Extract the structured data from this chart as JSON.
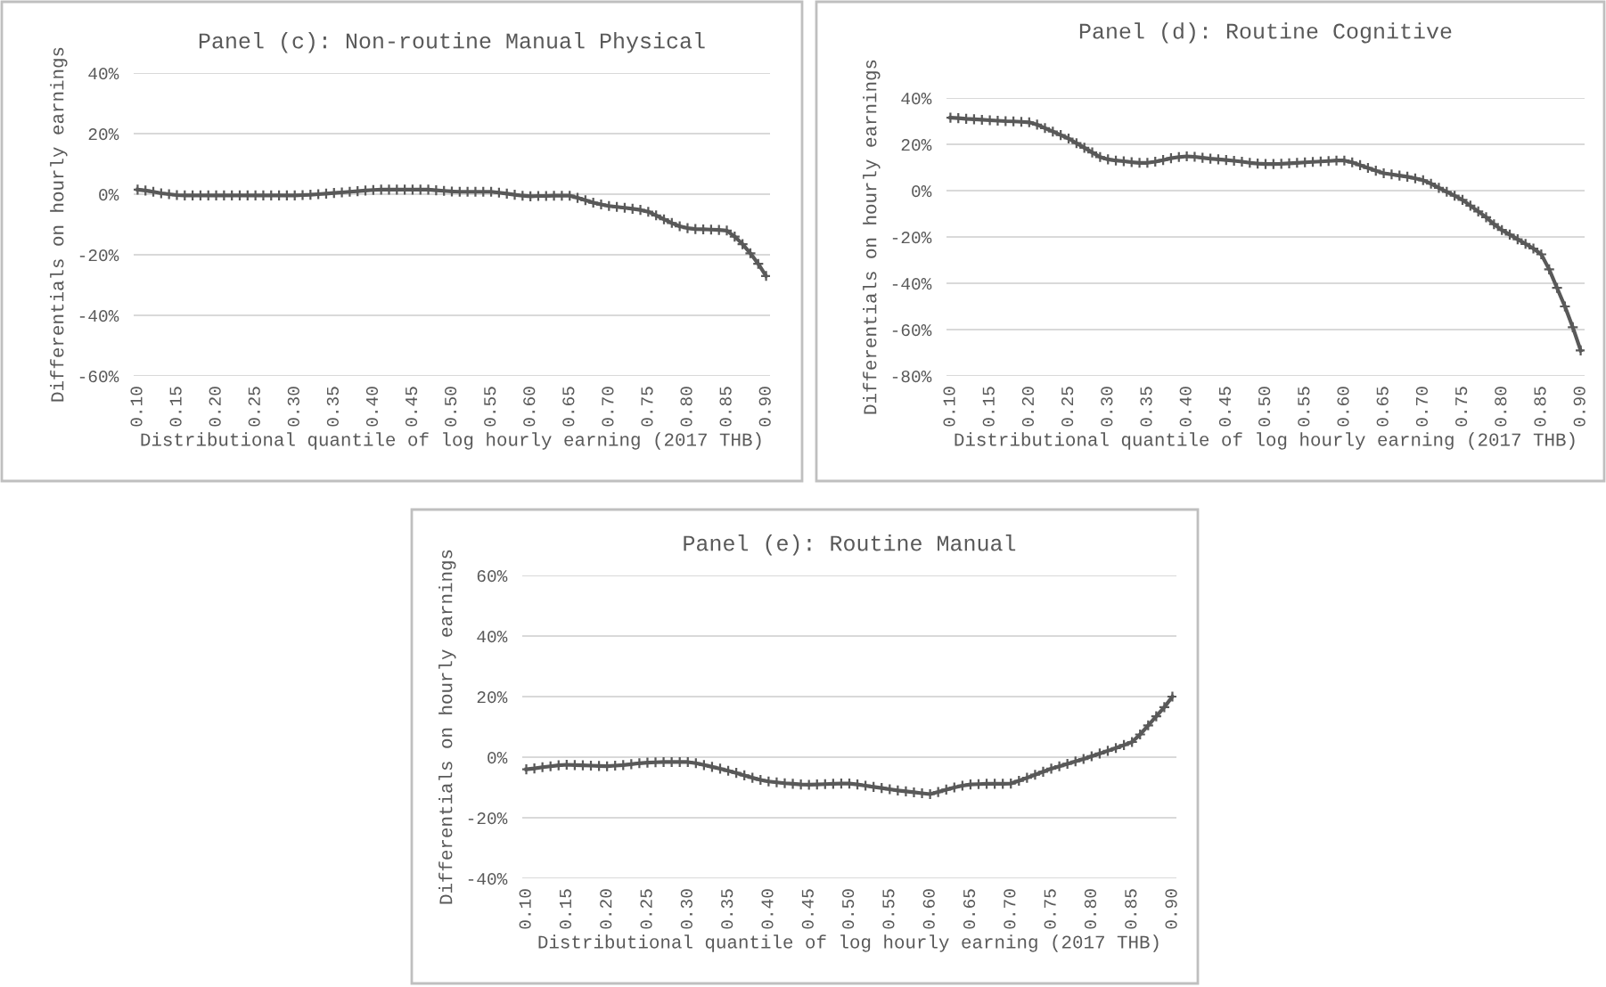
{
  "chart_data": [
    {
      "type": "line",
      "title": "Panel (c): Non-routine Manual Physical",
      "xlabel": "Distributional quantile of log hourly earning (2017 THB)",
      "ylabel": "Differentials on hourly earnings",
      "marker": "cross",
      "grid": "y",
      "categories": [
        "0.10",
        null,
        null,
        null,
        null,
        "0.15",
        null,
        null,
        null,
        null,
        "0.20",
        null,
        null,
        null,
        null,
        "0.25",
        null,
        null,
        null,
        null,
        "0.30",
        null,
        null,
        null,
        null,
        "0.35",
        null,
        null,
        null,
        null,
        "0.40",
        null,
        null,
        null,
        null,
        "0.45",
        null,
        null,
        null,
        null,
        "0.50",
        null,
        null,
        null,
        null,
        "0.55",
        null,
        null,
        null,
        null,
        "0.60",
        null,
        null,
        null,
        null,
        "0.65",
        null,
        null,
        null,
        null,
        "0.70",
        null,
        null,
        null,
        null,
        "0.75",
        null,
        null,
        null,
        null,
        "0.80",
        null,
        null,
        null,
        null,
        "0.85",
        null,
        null,
        null,
        null,
        "0.90"
      ],
      "ylim": [
        -60,
        40
      ],
      "yticks": [
        {
          "value": -60,
          "label": "-60%"
        },
        {
          "value": -40,
          "label": "-40%"
        },
        {
          "value": -20,
          "label": "-20%"
        },
        {
          "value": 0,
          "label": "0%"
        },
        {
          "value": 20,
          "label": "20%"
        },
        {
          "value": 40,
          "label": "40%"
        }
      ],
      "series": [
        {
          "color": "#595959",
          "values": [
            1.5,
            1.2,
            0.8,
            0.3,
            0,
            -0.3,
            -0.4,
            -0.4,
            -0.4,
            -0.4,
            -0.4,
            -0.4,
            -0.4,
            -0.4,
            -0.4,
            -0.4,
            -0.4,
            -0.4,
            -0.4,
            -0.4,
            -0.4,
            -0.3,
            -0.2,
            0,
            0.2,
            0.4,
            0.6,
            0.8,
            1.0,
            1.2,
            1.4,
            1.5,
            1.5,
            1.5,
            1.5,
            1.5,
            1.5,
            1.5,
            1.3,
            1.1,
            0.9,
            0.8,
            0.8,
            0.8,
            0.8,
            0.8,
            0.5,
            0.2,
            -0.2,
            -0.5,
            -0.7,
            -0.6,
            -0.6,
            -0.5,
            -0.5,
            -0.5,
            -1.2,
            -2,
            -2.8,
            -3.4,
            -3.9,
            -4.2,
            -4.5,
            -4.8,
            -5.2,
            -5.8,
            -7,
            -8.3,
            -9.5,
            -10.6,
            -11.2,
            -11.5,
            -11.6,
            -11.7,
            -11.8,
            -12,
            -14,
            -16.5,
            -19.5,
            -23,
            -27
          ]
        }
      ]
    },
    {
      "type": "line",
      "title": "Panel (d): Routine Cognitive",
      "xlabel": "Distributional quantile of log hourly earning (2017 THB)",
      "ylabel": "Differentials on hourly earnings",
      "marker": "cross",
      "grid": "y",
      "categories": [
        "0.10",
        null,
        null,
        null,
        null,
        "0.15",
        null,
        null,
        null,
        null,
        "0.20",
        null,
        null,
        null,
        null,
        "0.25",
        null,
        null,
        null,
        null,
        "0.30",
        null,
        null,
        null,
        null,
        "0.35",
        null,
        null,
        null,
        null,
        "0.40",
        null,
        null,
        null,
        null,
        "0.45",
        null,
        null,
        null,
        null,
        "0.50",
        null,
        null,
        null,
        null,
        "0.55",
        null,
        null,
        null,
        null,
        "0.60",
        null,
        null,
        null,
        null,
        "0.65",
        null,
        null,
        null,
        null,
        "0.70",
        null,
        null,
        null,
        null,
        "0.75",
        null,
        null,
        null,
        null,
        "0.80",
        null,
        null,
        null,
        null,
        "0.85",
        null,
        null,
        null,
        null,
        "0.90"
      ],
      "ylim": [
        -80,
        40
      ],
      "yticks": [
        {
          "value": -80,
          "label": "-80%"
        },
        {
          "value": -60,
          "label": "-60%"
        },
        {
          "value": -40,
          "label": "-40%"
        },
        {
          "value": -20,
          "label": "-20%"
        },
        {
          "value": 0,
          "label": "0%"
        },
        {
          "value": 20,
          "label": "20%"
        },
        {
          "value": 40,
          "label": "40%"
        }
      ],
      "series": [
        {
          "color": "#595959",
          "values": [
            31.5,
            31.3,
            31,
            30.8,
            30.6,
            30.4,
            30.2,
            30,
            29.9,
            29.7,
            29.5,
            28.5,
            27,
            25.5,
            24,
            22.5,
            20.5,
            18.5,
            16.5,
            14.5,
            13.5,
            13,
            12.7,
            12.3,
            12,
            12,
            12.5,
            13.2,
            14,
            14.5,
            14.8,
            14.6,
            14.2,
            13.8,
            13.5,
            13.2,
            12.9,
            12.5,
            12,
            11.7,
            11.5,
            11.5,
            11.6,
            11.8,
            12,
            12.2,
            12.4,
            12.6,
            12.8,
            13,
            13,
            12.2,
            11,
            9.8,
            8.6,
            7.5,
            7,
            6.5,
            6,
            5.3,
            4.5,
            3,
            1.2,
            -0.5,
            -2.2,
            -4,
            -6.5,
            -9,
            -11.5,
            -14.5,
            -17,
            -19,
            -21,
            -23,
            -25,
            -27.5,
            -34,
            -42,
            -50,
            -59,
            -69
          ]
        }
      ]
    },
    {
      "type": "line",
      "title": "Panel (e): Routine Manual",
      "xlabel": "Distributional quantile of log hourly earning (2017 THB)",
      "ylabel": "Differentials on hourly earnings",
      "marker": "cross",
      "grid": "y",
      "categories": [
        "0.10",
        null,
        null,
        null,
        null,
        "0.15",
        null,
        null,
        null,
        null,
        "0.20",
        null,
        null,
        null,
        null,
        "0.25",
        null,
        null,
        null,
        null,
        "0.30",
        null,
        null,
        null,
        null,
        "0.35",
        null,
        null,
        null,
        null,
        "0.40",
        null,
        null,
        null,
        null,
        "0.45",
        null,
        null,
        null,
        null,
        "0.50",
        null,
        null,
        null,
        null,
        "0.55",
        null,
        null,
        null,
        null,
        "0.60",
        null,
        null,
        null,
        null,
        "0.65",
        null,
        null,
        null,
        null,
        "0.70",
        null,
        null,
        null,
        null,
        "0.75",
        null,
        null,
        null,
        null,
        "0.80",
        null,
        null,
        null,
        null,
        "0.85",
        null,
        null,
        null,
        null,
        "0.90"
      ],
      "ylim": [
        -40,
        60
      ],
      "yticks": [
        {
          "value": -40,
          "label": "-40%"
        },
        {
          "value": -20,
          "label": "-20%"
        },
        {
          "value": 0,
          "label": "0%"
        },
        {
          "value": 20,
          "label": "20%"
        },
        {
          "value": 40,
          "label": "40%"
        },
        {
          "value": 60,
          "label": "60%"
        }
      ],
      "series": [
        {
          "color": "#595959",
          "values": [
            -4,
            -3.7,
            -3.3,
            -3,
            -2.7,
            -2.5,
            -2.6,
            -2.7,
            -2.8,
            -2.9,
            -3,
            -2.8,
            -2.6,
            -2.3,
            -2,
            -1.8,
            -1.7,
            -1.6,
            -1.6,
            -1.6,
            -1.6,
            -2,
            -2.6,
            -3.2,
            -3.8,
            -4.5,
            -5.2,
            -6,
            -6.8,
            -7.5,
            -8,
            -8.3,
            -8.6,
            -8.8,
            -9,
            -9.1,
            -9,
            -8.9,
            -8.8,
            -8.7,
            -8.7,
            -9,
            -9.4,
            -9.8,
            -10.2,
            -10.6,
            -11,
            -11.3,
            -11.6,
            -11.9,
            -12.2,
            -11.5,
            -10.7,
            -10,
            -9.4,
            -9,
            -8.9,
            -8.8,
            -8.8,
            -8.8,
            -8.7,
            -7.8,
            -6.8,
            -5.8,
            -4.8,
            -3.8,
            -3,
            -2.2,
            -1.4,
            -0.6,
            0.3,
            1.2,
            2.1,
            3,
            4,
            5,
            7.5,
            10.5,
            13.5,
            16.5,
            20
          ]
        }
      ]
    }
  ]
}
